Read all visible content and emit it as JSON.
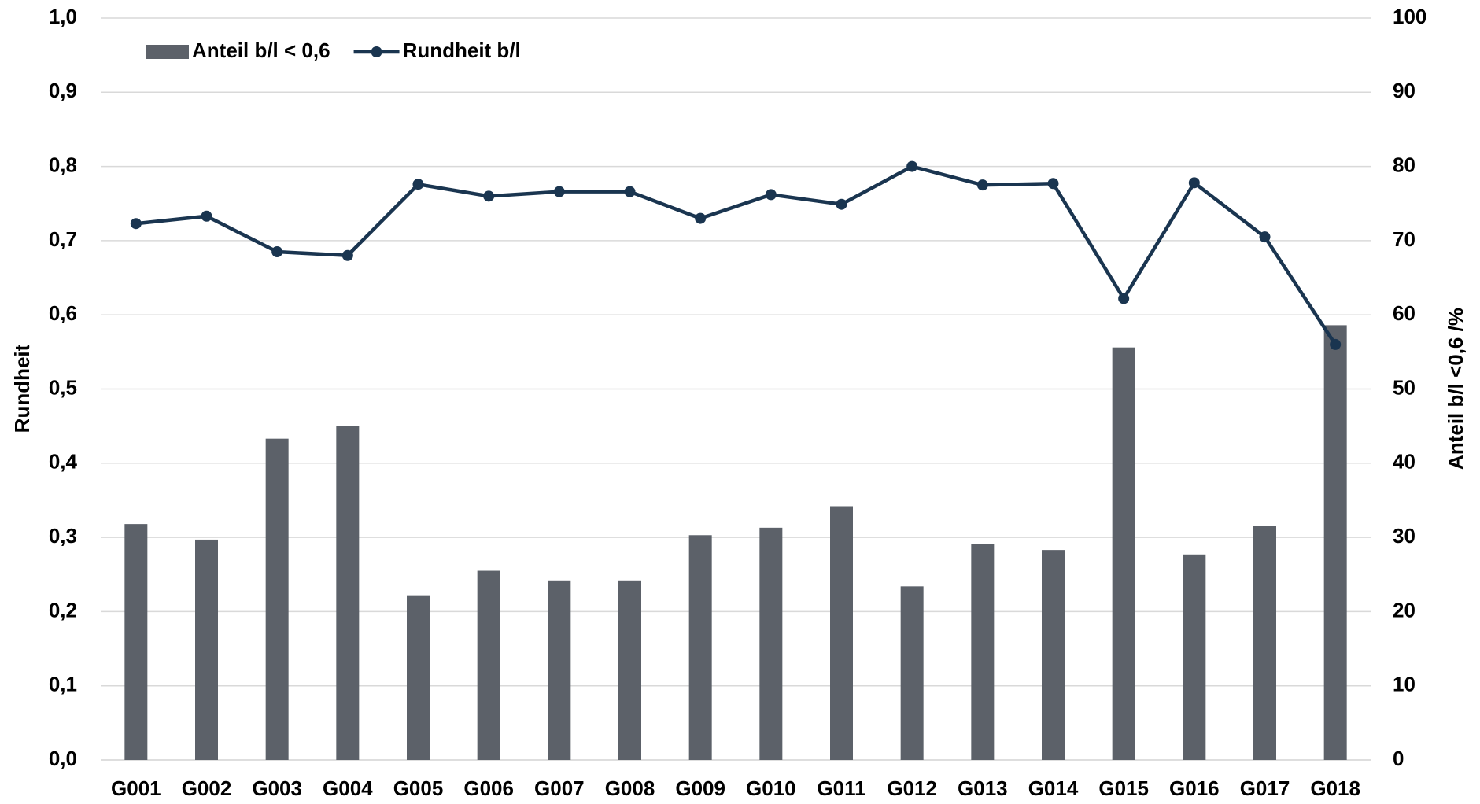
{
  "chart_data": {
    "type": "bar_line",
    "categories": [
      "G001",
      "G002",
      "G003",
      "G004",
      "G005",
      "G006",
      "G007",
      "G008",
      "G009",
      "G010",
      "G011",
      "G012",
      "G013",
      "G014",
      "G015",
      "G016",
      "G017",
      "G018"
    ],
    "series": [
      {
        "name": "Anteil b/l < 0,6",
        "type": "bar",
        "axis": "y2",
        "color": "#5c6169",
        "values": [
          31.8,
          29.7,
          43.3,
          45,
          22.2,
          25.5,
          24.2,
          24.2,
          30.3,
          31.3,
          34.2,
          23.4,
          29.1,
          28.3,
          55.6,
          27.7,
          31.6,
          58.6
        ]
      },
      {
        "name": "Rundheit b/l",
        "type": "line",
        "axis": "y",
        "color": "#1a3550",
        "values": [
          0.723,
          0.733,
          0.685,
          0.68,
          0.776,
          0.76,
          0.766,
          0.766,
          0.73,
          0.762,
          0.749,
          0.8,
          0.775,
          0.777,
          0.622,
          0.778,
          0.705,
          0.56
        ]
      }
    ],
    "ylabel": "Rundheit",
    "y2label": "Anteil b/l <0,6 /%",
    "ylim": [
      0,
      1
    ],
    "yticks": [
      {
        "value": 0,
        "label": "0,0"
      },
      {
        "value": 0.1,
        "label": "0,1"
      },
      {
        "value": 0.2,
        "label": "0,2"
      },
      {
        "value": 0.3,
        "label": "0,3"
      },
      {
        "value": 0.4,
        "label": "0,4"
      },
      {
        "value": 0.5,
        "label": "0,5"
      },
      {
        "value": 0.6,
        "label": "0,6"
      },
      {
        "value": 0.7,
        "label": "0,7"
      },
      {
        "value": 0.8,
        "label": "0,8"
      },
      {
        "value": 0.9,
        "label": "0,9"
      },
      {
        "value": 1,
        "label": "1,0"
      }
    ],
    "y2lim": [
      0,
      100
    ],
    "y2ticks": [
      0,
      10,
      20,
      30,
      40,
      50,
      60,
      70,
      80,
      90,
      100
    ],
    "grid": true,
    "legend": "top-left"
  }
}
